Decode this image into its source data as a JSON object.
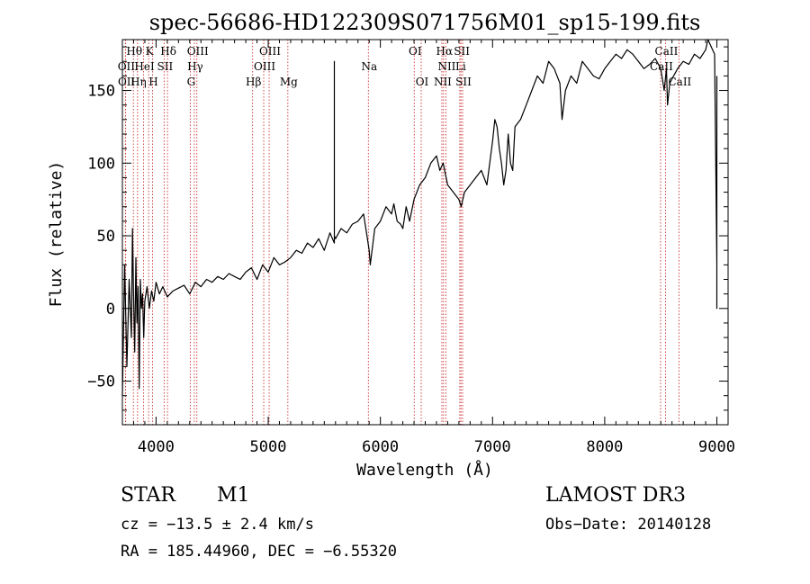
{
  "chart_data": {
    "type": "line",
    "title": "spec-56686-HD122309S071756M01_sp15-199.fits",
    "xlabel": "Wavelength (Å)",
    "ylabel": "Flux (relative)",
    "xlim": [
      3700,
      9100
    ],
    "ylim": [
      -80,
      185
    ],
    "xticks": [
      4000,
      5000,
      6000,
      7000,
      8000,
      9000
    ],
    "yticks": [
      -50,
      0,
      50,
      100,
      150
    ],
    "grid": false,
    "line_color": "#000000",
    "spectral_lines": [
      {
        "label": "Hθ",
        "wavelength": 3798,
        "row": 0
      },
      {
        "label": "K",
        "wavelength": 3934,
        "row": 0
      },
      {
        "label": "Hδ",
        "wavelength": 4102,
        "row": 0
      },
      {
        "label": "OIII",
        "wavelength": 4364,
        "row": 0
      },
      {
        "label": "OIII",
        "wavelength": 5008,
        "row": 0
      },
      {
        "label": "OI",
        "wavelength": 6302,
        "row": 0
      },
      {
        "label": "Hα",
        "wavelength": 6563,
        "row": 0
      },
      {
        "label": "SII",
        "wavelength": 6718,
        "row": 0
      },
      {
        "label": "CaII",
        "wavelength": 8542,
        "row": 0
      },
      {
        "label": "OII",
        "wavelength": 3727,
        "row": 1
      },
      {
        "label": "HeI",
        "wavelength": 3889,
        "row": 1
      },
      {
        "label": "SII",
        "wavelength": 4072,
        "row": 1
      },
      {
        "label": "Hγ",
        "wavelength": 4341,
        "row": 1
      },
      {
        "label": "OIII",
        "wavelength": 4960,
        "row": 1
      },
      {
        "label": "Na",
        "wavelength": 5893,
        "row": 1
      },
      {
        "label": "NII",
        "wavelength": 6584,
        "row": 1
      },
      {
        "label": "Li",
        "wavelength": 6708,
        "row": 1
      },
      {
        "label": "CaII",
        "wavelength": 8498,
        "row": 1
      },
      {
        "label": "OII",
        "wavelength": 3729,
        "row": 2
      },
      {
        "label": "Hη",
        "wavelength": 3835,
        "row": 2
      },
      {
        "label": "H",
        "wavelength": 3969,
        "row": 2
      },
      {
        "label": "G",
        "wavelength": 4305,
        "row": 2
      },
      {
        "label": "Hβ",
        "wavelength": 4861,
        "row": 2
      },
      {
        "label": "Mg",
        "wavelength": 5175,
        "row": 2
      },
      {
        "label": "OI",
        "wavelength": 6364,
        "row": 2
      },
      {
        "label": "NII",
        "wavelength": 6548,
        "row": 2
      },
      {
        "label": "SII",
        "wavelength": 6733,
        "row": 2
      },
      {
        "label": "CaII",
        "wavelength": 8662,
        "row": 2
      }
    ],
    "series": [
      {
        "name": "flux",
        "x": [
          3700,
          3720,
          3740,
          3760,
          3780,
          3790,
          3800,
          3810,
          3820,
          3830,
          3840,
          3850,
          3860,
          3870,
          3880,
          3890,
          3900,
          3920,
          3940,
          3960,
          3980,
          4000,
          4030,
          4060,
          4100,
          4150,
          4200,
          4250,
          4300,
          4350,
          4400,
          4450,
          4500,
          4550,
          4600,
          4650,
          4700,
          4750,
          4800,
          4850,
          4900,
          4950,
          5000,
          5050,
          5100,
          5150,
          5200,
          5250,
          5300,
          5350,
          5400,
          5450,
          5500,
          5550,
          5590,
          5590,
          5590,
          5600,
          5650,
          5700,
          5750,
          5800,
          5850,
          5900,
          5910,
          5950,
          6000,
          6050,
          6100,
          6120,
          6150,
          6180,
          6200,
          6230,
          6260,
          6300,
          6350,
          6400,
          6450,
          6500,
          6530,
          6560,
          6600,
          6650,
          6700,
          6720,
          6750,
          6800,
          6850,
          6900,
          6950,
          7000,
          7020,
          7040,
          7060,
          7080,
          7100,
          7120,
          7140,
          7160,
          7180,
          7200,
          7250,
          7300,
          7350,
          7400,
          7450,
          7500,
          7550,
          7600,
          7620,
          7650,
          7700,
          7750,
          7800,
          7850,
          7900,
          7950,
          8000,
          8050,
          8100,
          8150,
          8200,
          8250,
          8300,
          8350,
          8400,
          8450,
          8500,
          8530,
          8550,
          8560,
          8580,
          8600,
          8650,
          8700,
          8750,
          8800,
          8850,
          8900,
          8920,
          8950,
          8980,
          9000,
          9000,
          9000
        ],
        "values": [
          -60,
          30,
          -40,
          20,
          -20,
          55,
          5,
          -30,
          35,
          -10,
          15,
          -55,
          20,
          0,
          10,
          -20,
          5,
          15,
          0,
          12,
          5,
          18,
          10,
          15,
          8,
          12,
          14,
          16,
          10,
          18,
          15,
          20,
          18,
          22,
          20,
          24,
          22,
          20,
          25,
          28,
          20,
          30,
          25,
          35,
          30,
          32,
          35,
          40,
          38,
          45,
          42,
          48,
          40,
          52,
          45,
          170,
          50,
          48,
          55,
          52,
          58,
          60,
          65,
          40,
          30,
          55,
          60,
          70,
          65,
          72,
          60,
          58,
          55,
          70,
          60,
          75,
          85,
          90,
          100,
          105,
          95,
          100,
          85,
          80,
          75,
          70,
          80,
          85,
          90,
          95,
          85,
          115,
          130,
          125,
          110,
          100,
          85,
          95,
          120,
          100,
          95,
          125,
          130,
          140,
          150,
          160,
          155,
          170,
          165,
          155,
          130,
          150,
          160,
          155,
          170,
          165,
          160,
          158,
          165,
          170,
          175,
          172,
          178,
          175,
          170,
          165,
          168,
          172,
          165,
          150,
          165,
          140,
          155,
          158,
          165,
          170,
          168,
          175,
          172,
          178,
          185,
          180,
          175,
          30,
          0,
          160
        ]
      }
    ]
  },
  "info": {
    "object_type": "STAR",
    "subclass": "M1",
    "survey": "LAMOST DR3",
    "cz": "cz = −13.5 ± 2.4 km/s",
    "obs_date": "Obs−Date: 20140128",
    "coords": "RA = 185.44960, DEC =  −6.55320"
  }
}
